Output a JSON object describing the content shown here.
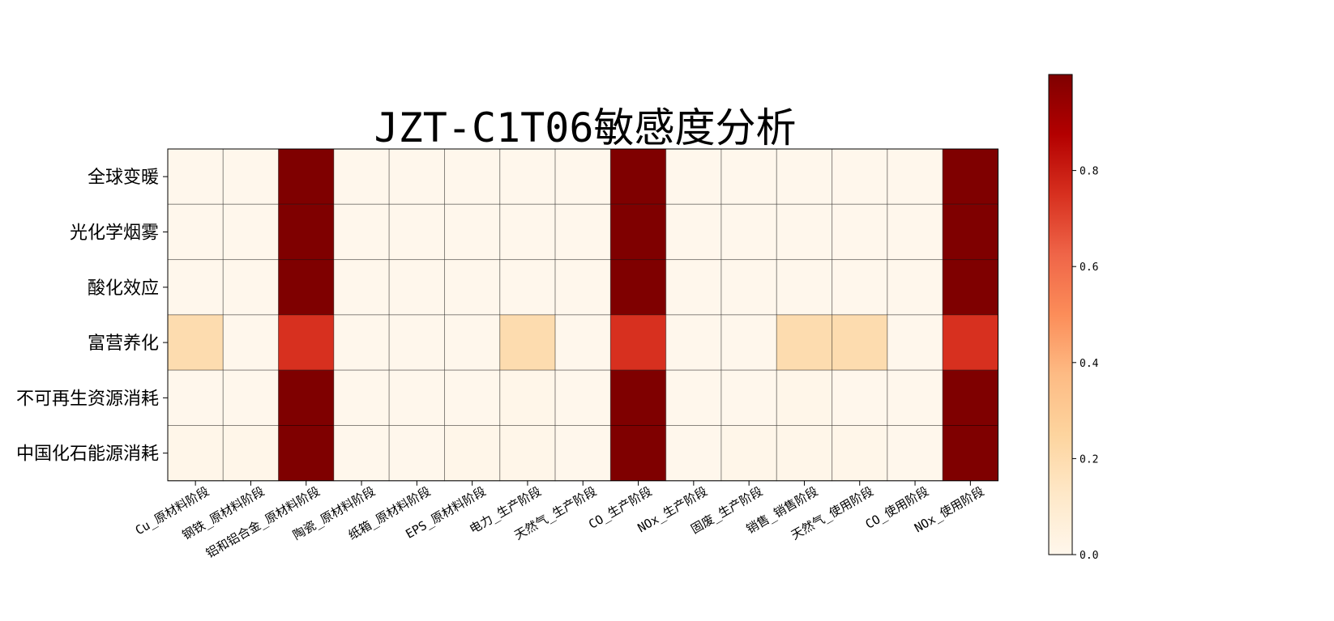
{
  "chart_data": {
    "type": "heatmap",
    "title": "JZT-C1T06敏感度分析",
    "x_categories": [
      "Cu_原材料阶段",
      "钢铁_原材料阶段",
      "铝和铝合金_原材料阶段",
      "陶瓷_原材料阶段",
      "纸箱_原材料阶段",
      "EPS_原材料阶段",
      "电力_生产阶段",
      "天然气_生产阶段",
      "CO_生产阶段",
      "NOx_生产阶段",
      "固废_生产阶段",
      "销售_销售阶段",
      "天然气_使用阶段",
      "CO_使用阶段",
      "NOx_使用阶段"
    ],
    "y_categories": [
      "全球变暖",
      "光化学烟雾",
      "酸化效应",
      "富营养化",
      "不可再生资源消耗",
      "中国化石能源消耗"
    ],
    "values": [
      [
        0.0,
        0.0,
        1.0,
        0.0,
        0.0,
        0.0,
        0.0,
        0.0,
        1.0,
        0.0,
        0.0,
        0.0,
        0.0,
        0.0,
        1.0
      ],
      [
        0.0,
        0.0,
        1.0,
        0.0,
        0.0,
        0.0,
        0.0,
        0.0,
        1.0,
        0.0,
        0.0,
        0.0,
        0.0,
        0.0,
        1.0
      ],
      [
        0.0,
        0.0,
        1.0,
        0.0,
        0.0,
        0.0,
        0.0,
        0.0,
        1.0,
        0.0,
        0.0,
        0.0,
        0.0,
        0.0,
        1.0
      ],
      [
        0.2,
        0.0,
        0.75,
        0.0,
        0.0,
        0.0,
        0.2,
        0.0,
        0.75,
        0.0,
        0.0,
        0.2,
        0.2,
        0.0,
        0.75
      ],
      [
        0.0,
        0.0,
        1.0,
        0.0,
        0.0,
        0.0,
        0.01,
        0.0,
        1.0,
        0.0,
        0.0,
        0.01,
        0.0,
        0.0,
        1.0
      ],
      [
        0.01,
        0.01,
        1.0,
        0.0,
        0.0,
        0.01,
        0.01,
        0.0,
        1.0,
        0.0,
        0.01,
        0.01,
        0.01,
        0.0,
        1.0
      ]
    ],
    "colormap": "OrRd",
    "colorbar": {
      "min": 0.0,
      "max": 1.0,
      "ticks": [
        "0.0",
        "0.2",
        "0.4",
        "0.6",
        "0.8"
      ]
    },
    "grid": true
  }
}
